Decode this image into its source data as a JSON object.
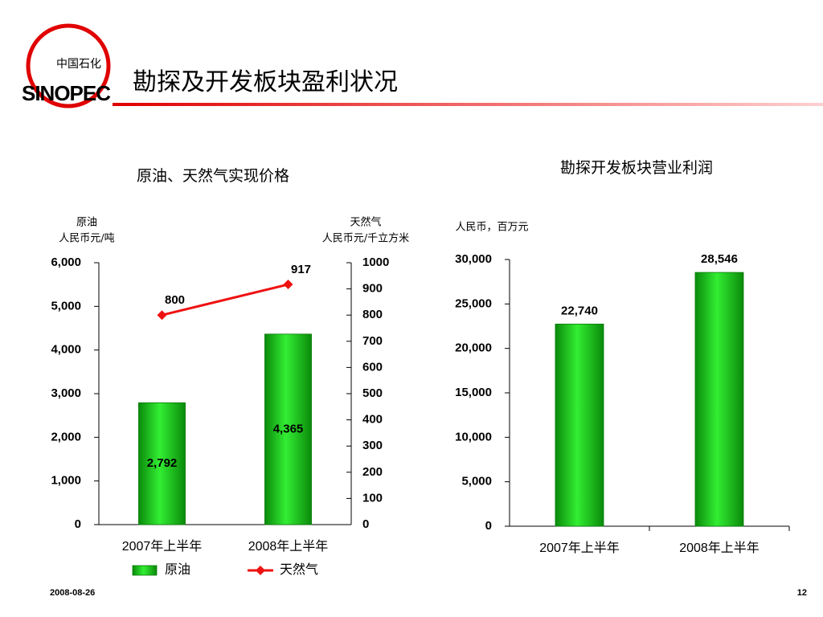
{
  "slide": {
    "title": "勘探及开发板块盈利状况",
    "logo_cn": "中国石化",
    "logo_en": "SINOPEC",
    "date": "2008-08-26",
    "page": "12"
  },
  "chart_data": [
    {
      "type": "bar",
      "title": "原油、天然气实现价格",
      "y_label": [
        "原油",
        "人民币元/吨"
      ],
      "y2_label": [
        "天然气",
        "人民币元/千立方米"
      ],
      "categories": [
        "2007年上半年",
        "2008年上半年"
      ],
      "series": [
        {
          "name": "原油",
          "type": "bar",
          "color": "#22cc22",
          "values": [
            2792,
            4365
          ],
          "value_labels": [
            "2,792",
            "4,365"
          ]
        },
        {
          "name": "天然气",
          "type": "line",
          "axis": "y2",
          "color": "#ee1111",
          "values": [
            800,
            917
          ]
        }
      ],
      "ylim": [
        0,
        6000
      ],
      "yticks": [
        0,
        {
          "value": 1000,
          "label": "1,000"
        },
        {
          "value": 2000,
          "label": "2,000"
        },
        {
          "value": 3000,
          "label": "3,000"
        },
        {
          "value": 4000,
          "label": "4,000"
        },
        {
          "value": 5000,
          "label": "5,000"
        },
        {
          "value": 6000,
          "label": "6,000"
        }
      ],
      "y2lim": [
        0,
        1000
      ],
      "y2ticks": [
        0,
        100,
        200,
        300,
        400,
        500,
        600,
        700,
        800,
        900,
        1000
      ],
      "grid": false,
      "legend": "bottom"
    },
    {
      "type": "bar",
      "title": "勘探开发板块营业利润",
      "y_label": [
        "人民币，百万元"
      ],
      "categories": [
        "2007年上半年",
        "2008年上半年"
      ],
      "series": [
        {
          "name": "营业利润",
          "type": "bar",
          "color": "#22cc22",
          "values": [
            22740,
            28546
          ],
          "value_labels": [
            "22,740",
            "28,546"
          ]
        }
      ],
      "ylim": [
        0,
        30000
      ],
      "yticks": [
        0,
        {
          "value": 5000,
          "label": "5,000"
        },
        {
          "value": 10000,
          "label": "10,000"
        },
        {
          "value": 15000,
          "label": "15,000"
        },
        {
          "value": 20000,
          "label": "20,000"
        },
        {
          "value": 25000,
          "label": "25,000"
        },
        {
          "value": 30000,
          "label": "30,000"
        }
      ],
      "grid": false
    }
  ]
}
